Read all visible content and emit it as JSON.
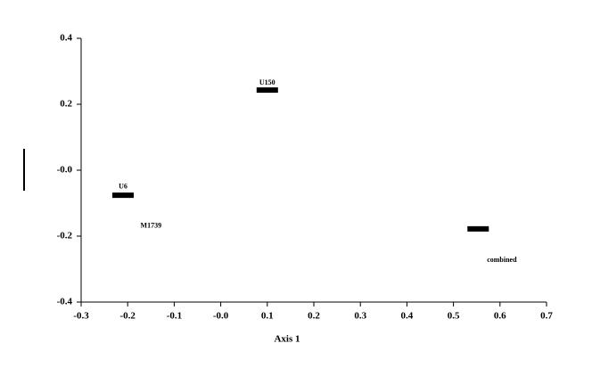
{
  "chart_data": {
    "type": "scatter",
    "x_label": "Axis 1",
    "xlim": [
      -0.3,
      0.7
    ],
    "xticks": [
      -0.3,
      -0.2,
      -0.1,
      {
        "value": 0,
        "label": "-0.0"
      },
      0.1,
      0.2,
      0.3,
      0.4,
      0.5,
      0.6,
      0.7
    ],
    "ylim": [
      -0.4,
      0.4
    ],
    "yticks": [
      -0.4,
      -0.2,
      {
        "value": 0,
        "label": "-0.0"
      },
      0.2,
      0.4
    ],
    "color": "#000000",
    "series": [
      {
        "name": null,
        "x": [
          0.1,
          0.1,
          -0.21,
          -0.21,
          -0.15,
          0.553,
          0.604
        ],
        "values": [
          0.265,
          0.243,
          -0.051,
          -0.076,
          -0.17,
          -0.178,
          -0.273
        ],
        "labels": [
          "U150",
          null,
          "U6",
          null,
          "M1739",
          null,
          "combined"
        ]
      }
    ]
  }
}
